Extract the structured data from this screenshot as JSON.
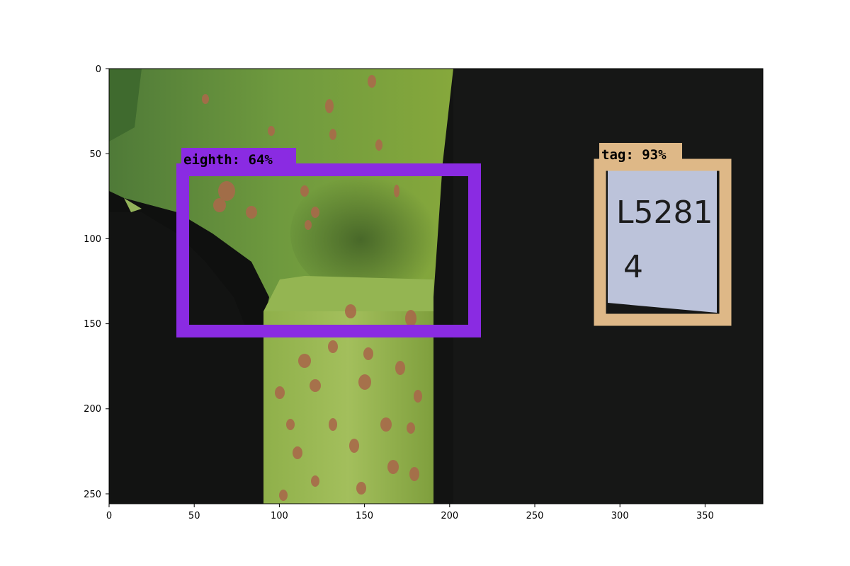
{
  "figure": {
    "x_axis": {
      "ticks": [
        "0",
        "50",
        "100",
        "150",
        "200",
        "250",
        "300",
        "350"
      ]
    },
    "y_axis": {
      "ticks": [
        "0",
        "50",
        "100",
        "150",
        "200",
        "250"
      ]
    }
  },
  "image": {
    "description_icon": "maize-leaf-photo",
    "detections": [
      {
        "label": "eighth: 64%",
        "color": "#8a2be2"
      },
      {
        "label": "tag: 93%",
        "color": "#deb887"
      }
    ],
    "tag_card": {
      "line1": "L5281",
      "line2": "4"
    }
  }
}
